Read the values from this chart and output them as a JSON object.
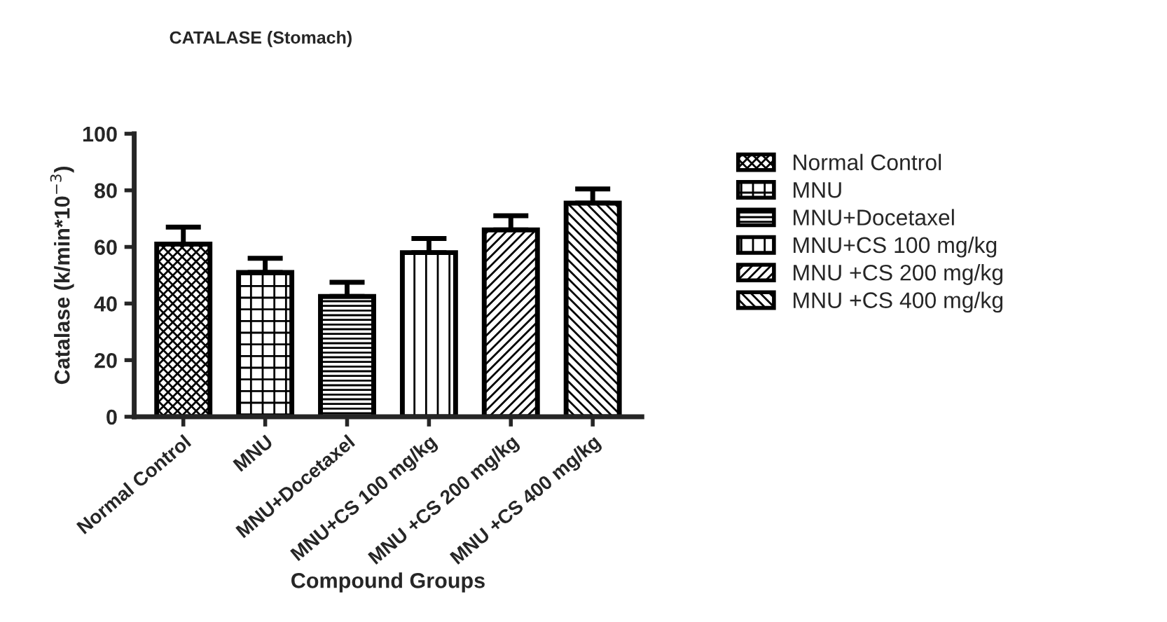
{
  "chart_data": {
    "type": "bar",
    "title": "CATALASE (Stomach)",
    "xlabel": "Compound Groups",
    "ylabel": "Catalase (k/min*10$^{−3}$)",
    "categories": [
      "Normal Control",
      "MNU",
      "MNU+Docetaxel",
      "MNU+CS 100 mg/kg",
      "MNU +CS 200 mg/kg",
      "MNU +CS 400 mg/kg"
    ],
    "series": [
      {
        "name": "Normal Control",
        "color": "#000000",
        "values": [
          61,
          null,
          null,
          null,
          null,
          null
        ],
        "errors": [
          [
            61,
            67
          ],
          null,
          null,
          null,
          null,
          null
        ]
      },
      {
        "name": "MNU",
        "color": "#000000",
        "values": [
          null,
          51,
          null,
          null,
          null,
          null
        ],
        "errors": [
          null,
          [
            51,
            56
          ],
          null,
          null,
          null,
          null
        ]
      },
      {
        "name": "MNU+Docetaxel",
        "color": "#000000",
        "values": [
          null,
          null,
          42.5,
          null,
          null,
          null
        ],
        "errors": [
          null,
          null,
          [
            42.5,
            47.5
          ],
          null,
          null,
          null
        ]
      },
      {
        "name": "MNU+CS 100 mg/kg",
        "color": "#000000",
        "values": [
          null,
          null,
          null,
          58,
          null,
          null
        ],
        "errors": [
          null,
          null,
          null,
          [
            58,
            63
          ],
          null,
          null
        ]
      },
      {
        "name": "MNU +CS 200 mg/kg",
        "color": "#000000",
        "values": [
          null,
          null,
          null,
          null,
          66,
          null
        ],
        "errors": [
          null,
          null,
          null,
          null,
          [
            66,
            71
          ],
          null
        ]
      },
      {
        "name": "MNU +CS 400 mg/kg",
        "color": "#000000",
        "values": [
          null,
          null,
          null,
          null,
          null,
          75.5
        ],
        "errors": [
          null,
          null,
          null,
          null,
          null,
          [
            75.5,
            80.5
          ]
        ]
      }
    ],
    "ylim": [
      0,
      100
    ],
    "yticks": [
      0,
      20,
      40,
      60,
      80,
      100
    ],
    "grid": false,
    "legend": "right"
  }
}
